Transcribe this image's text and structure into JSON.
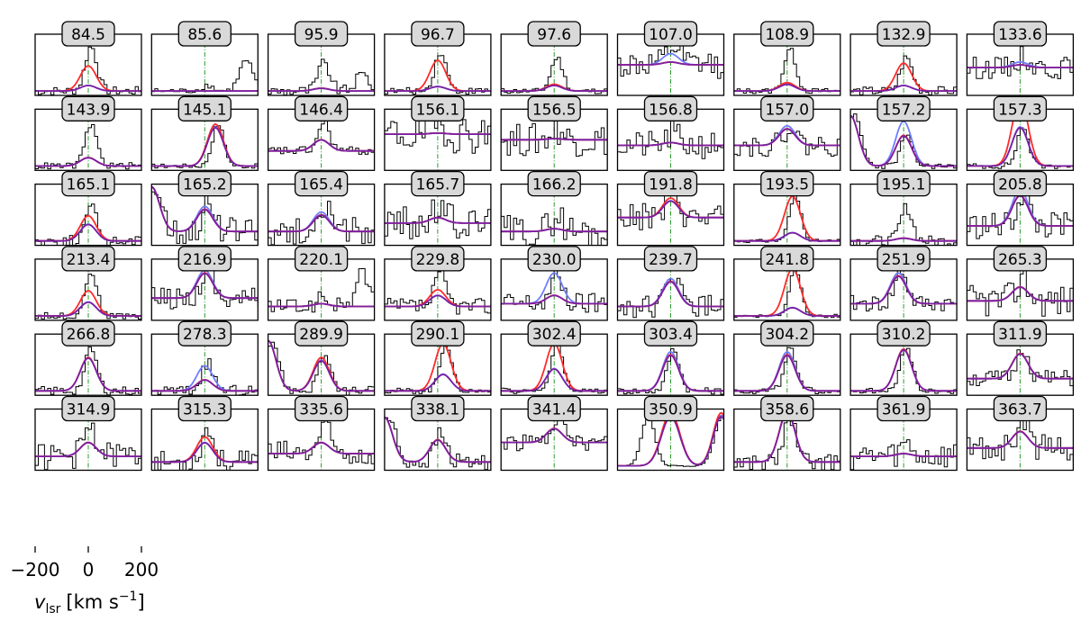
{
  "chart_data": {
    "type": "line",
    "description_free": true,
    "grid_rows": 6,
    "grid_cols": 9,
    "x_range": [
      -200,
      200
    ],
    "x_ticks": [
      -200,
      0,
      200
    ],
    "x_tick_labels": [
      "−200",
      "0",
      "200"
    ],
    "xlabel": "v_lsr [km s⁻¹]",
    "xlabel_main": "v",
    "xlabel_sub": "lsr",
    "xlabel_unit": "[km s",
    "xlabel_sup": "−1",
    "xlabel_close": "]",
    "series_colors": {
      "data": "#000000",
      "red_model": "#ff2a2a",
      "blue_model": "#6f7dff",
      "purple_model": "#7a1fa3",
      "center_line": "#2a9a2a"
    },
    "panels": [
      {
        "label": "84.5",
        "peak": 0.8,
        "red": 0.45,
        "blue": 0.1,
        "noise": 0.08
      },
      {
        "label": "85.6",
        "peak": 0.1,
        "red": 0,
        "blue": 0,
        "noise": 0.05,
        "side": 0.55
      },
      {
        "label": "95.9",
        "peak": 0.5,
        "red": 0.05,
        "blue": 0.05,
        "noise": 0.1,
        "side": 0.3
      },
      {
        "label": "96.7",
        "peak": 0.7,
        "red": 0.55,
        "blue": 0.08,
        "noise": 0.06
      },
      {
        "label": "97.6",
        "peak": 0.6,
        "red": 0.12,
        "blue": 0.1,
        "noise": 0.05
      },
      {
        "label": "107.0",
        "peak": 0.3,
        "red": 0.05,
        "blue": 0.2,
        "noise": 0.25,
        "base": 0.5
      },
      {
        "label": "108.9",
        "peak": 0.75,
        "red": 0.15,
        "blue": 0.12,
        "noise": 0.05
      },
      {
        "label": "132.9",
        "peak": 0.6,
        "red": 0.5,
        "blue": 0.1,
        "noise": 0.08
      },
      {
        "label": "133.6",
        "peak": 0.2,
        "red": 0.05,
        "blue": 0.1,
        "noise": 0.2,
        "base": 0.45
      },
      {
        "label": "143.9",
        "peak": 0.75,
        "red": 0.15,
        "blue": 0.15,
        "noise": 0.06
      },
      {
        "label": "145.1",
        "peak": 0.75,
        "red": 0.75,
        "blue": 0.7,
        "noise": 0.04,
        "shift": 40
      },
      {
        "label": "146.4",
        "peak": 0.5,
        "red": 0.2,
        "blue": 0.2,
        "noise": 0.08,
        "base": 0.3
      },
      {
        "label": "156.1",
        "peak": 0.2,
        "red": 0.02,
        "blue": 0.02,
        "noise": 0.35,
        "base": 0.6
      },
      {
        "label": "156.5",
        "peak": 0.2,
        "red": 0.02,
        "blue": 0.02,
        "noise": 0.3,
        "base": 0.5
      },
      {
        "label": "156.8",
        "peak": 0.2,
        "red": 0.05,
        "blue": 0.05,
        "noise": 0.25,
        "base": 0.4
      },
      {
        "label": "157.0",
        "peak": 0.35,
        "red": 0.3,
        "blue": 0.35,
        "noise": 0.2,
        "base": 0.4
      },
      {
        "label": "157.2",
        "peak": 0.55,
        "red": 0.55,
        "blue": 0.8,
        "noise": 0.05,
        "edge": 0.9
      },
      {
        "label": "157.3",
        "peak": 0.7,
        "red": 1.2,
        "blue": 0.7,
        "noise": 0.05
      },
      {
        "label": "165.1",
        "peak": 0.6,
        "red": 0.45,
        "blue": 0.3,
        "noise": 0.1
      },
      {
        "label": "165.2",
        "peak": 0.5,
        "red": 0.4,
        "blue": 0.45,
        "noise": 0.25,
        "base": 0.2,
        "edge": 0.8
      },
      {
        "label": "165.4",
        "peak": 0.5,
        "red": 0.3,
        "blue": 0.35,
        "noise": 0.25,
        "base": 0.2
      },
      {
        "label": "165.7",
        "peak": 0.3,
        "red": 0.1,
        "blue": 0.1,
        "noise": 0.3,
        "base": 0.35
      },
      {
        "label": "166.2",
        "peak": 0.3,
        "red": 0.05,
        "blue": 0.05,
        "noise": 0.3,
        "base": 0.2
      },
      {
        "label": "191.8",
        "peak": 0.5,
        "red": 0.35,
        "blue": 0.3,
        "noise": 0.25,
        "base": 0.45
      },
      {
        "label": "193.5",
        "peak": 0.8,
        "red": 0.8,
        "blue": 0.15,
        "noise": 0.03,
        "shift": 20
      },
      {
        "label": "195.1",
        "peak": 0.6,
        "red": 0.05,
        "blue": 0.05,
        "noise": 0.1
      },
      {
        "label": "205.8",
        "peak": 0.6,
        "red": 0.55,
        "blue": 0.65,
        "noise": 0.25,
        "base": 0.3
      },
      {
        "label": "213.4",
        "peak": 0.8,
        "red": 0.45,
        "blue": 0.25,
        "noise": 0.06
      },
      {
        "label": "216.9",
        "peak": 0.55,
        "red": 0.45,
        "blue": 0.5,
        "noise": 0.2,
        "base": 0.35
      },
      {
        "label": "220.1",
        "peak": 0.15,
        "red": 0.05,
        "blue": 0.05,
        "noise": 0.15,
        "base": 0.2,
        "side": 0.6
      },
      {
        "label": "229.8",
        "peak": 0.55,
        "red": 0.3,
        "blue": 0.2,
        "noise": 0.15,
        "base": 0.2
      },
      {
        "label": "230.0",
        "peak": 0.5,
        "red": 0.15,
        "blue": 0.55,
        "noise": 0.2,
        "base": 0.25
      },
      {
        "label": "239.7",
        "peak": 0.6,
        "red": 0.45,
        "blue": 0.5,
        "noise": 0.2,
        "base": 0.2
      },
      {
        "label": "241.8",
        "peak": 0.85,
        "red": 0.85,
        "blue": 0.15,
        "noise": 0.03,
        "shift": 20
      },
      {
        "label": "251.9",
        "peak": 0.6,
        "red": 0.5,
        "blue": 0.55,
        "noise": 0.15,
        "base": 0.25,
        "shift": -20
      },
      {
        "label": "265.3",
        "peak": 0.4,
        "red": 0.25,
        "blue": 0.25,
        "noise": 0.3,
        "base": 0.3
      },
      {
        "label": "266.8",
        "peak": 0.75,
        "red": 0.6,
        "blue": 0.6,
        "noise": 0.08
      },
      {
        "label": "278.3",
        "peak": 0.5,
        "red": 0.2,
        "blue": 0.45,
        "noise": 0.1
      },
      {
        "label": "289.9",
        "peak": 0.65,
        "red": 0.6,
        "blue": 0.55,
        "noise": 0.08,
        "edge": 0.9
      },
      {
        "label": "290.1",
        "peak": 0.85,
        "red": 0.85,
        "blue": 0.3,
        "noise": 0.05,
        "shift": 20
      },
      {
        "label": "302.4",
        "peak": 0.85,
        "red": 0.85,
        "blue": 0.4,
        "noise": 0.05
      },
      {
        "label": "303.4",
        "peak": 0.75,
        "red": 0.65,
        "blue": 0.7,
        "noise": 0.06
      },
      {
        "label": "304.2",
        "peak": 0.75,
        "red": 0.65,
        "blue": 0.7,
        "noise": 0.06
      },
      {
        "label": "310.2",
        "peak": 0.8,
        "red": 0.75,
        "blue": 0.75,
        "noise": 0.05
      },
      {
        "label": "311.9",
        "peak": 0.55,
        "red": 0.45,
        "blue": 0.45,
        "noise": 0.15,
        "base": 0.25
      },
      {
        "label": "314.9",
        "peak": 0.55,
        "red": 0.25,
        "blue": 0.25,
        "noise": 0.25,
        "base": 0.2
      },
      {
        "label": "315.3",
        "peak": 0.6,
        "red": 0.45,
        "blue": 0.35,
        "noise": 0.2,
        "base": 0.1
      },
      {
        "label": "335.6",
        "peak": 0.45,
        "red": 0.2,
        "blue": 0.2,
        "noise": 0.25,
        "base": 0.25
      },
      {
        "label": "338.1",
        "peak": 0.5,
        "red": 0.4,
        "blue": 0.4,
        "noise": 0.15,
        "base": 0.1,
        "edge": 0.8
      },
      {
        "label": "341.4",
        "peak": 0.45,
        "red": 0.25,
        "blue": 0.25,
        "noise": 0.15,
        "base": 0.45
      },
      {
        "label": "350.9",
        "peak": 0.85,
        "red": 0.95,
        "blue": 0.9,
        "noise": 0.1,
        "double": true
      },
      {
        "label": "358.6",
        "peak": 0.8,
        "red": 0.9,
        "blue": 0.9,
        "noise": 0.15,
        "base": 0.1
      },
      {
        "label": "361.9",
        "peak": 0.2,
        "red": 0.05,
        "blue": 0.05,
        "noise": 0.25,
        "base": 0.2
      },
      {
        "label": "363.7",
        "peak": 0.45,
        "red": 0.3,
        "blue": 0.3,
        "noise": 0.25,
        "base": 0.35
      }
    ]
  }
}
